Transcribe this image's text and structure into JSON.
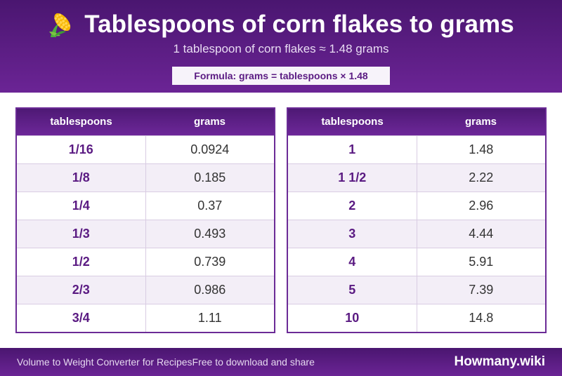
{
  "header": {
    "title": "Tablespoons of corn flakes to grams",
    "icon": "corn-icon",
    "subtitle": "1 tablespoon of corn flakes ≈ 1.48 grams",
    "formula": "Formula: grams = tablespoons × 1.48"
  },
  "tables": [
    {
      "col1": "tablespoons",
      "col2": "grams",
      "rows": [
        {
          "tbsp": "1/16",
          "grams": "0.0924"
        },
        {
          "tbsp": "1/8",
          "grams": "0.185"
        },
        {
          "tbsp": "1/4",
          "grams": "0.37"
        },
        {
          "tbsp": "1/3",
          "grams": "0.493"
        },
        {
          "tbsp": "1/2",
          "grams": "0.739"
        },
        {
          "tbsp": "2/3",
          "grams": "0.986"
        },
        {
          "tbsp": "3/4",
          "grams": "1.11"
        }
      ]
    },
    {
      "col1": "tablespoons",
      "col2": "grams",
      "rows": [
        {
          "tbsp": "1",
          "grams": "1.48"
        },
        {
          "tbsp": "1 1/2",
          "grams": "2.22"
        },
        {
          "tbsp": "2",
          "grams": "2.96"
        },
        {
          "tbsp": "3",
          "grams": "4.44"
        },
        {
          "tbsp": "4",
          "grams": "5.91"
        },
        {
          "tbsp": "5",
          "grams": "7.39"
        },
        {
          "tbsp": "10",
          "grams": "14.8"
        }
      ]
    }
  ],
  "footer": {
    "left_text": "Volume to Weight Converter for RecipesFree to download and share",
    "brand": "Howmany.wiki"
  },
  "colors": {
    "header_bg": "#5a1e82",
    "accent": "#5a1a82",
    "row_alt": "#f3eef7"
  }
}
